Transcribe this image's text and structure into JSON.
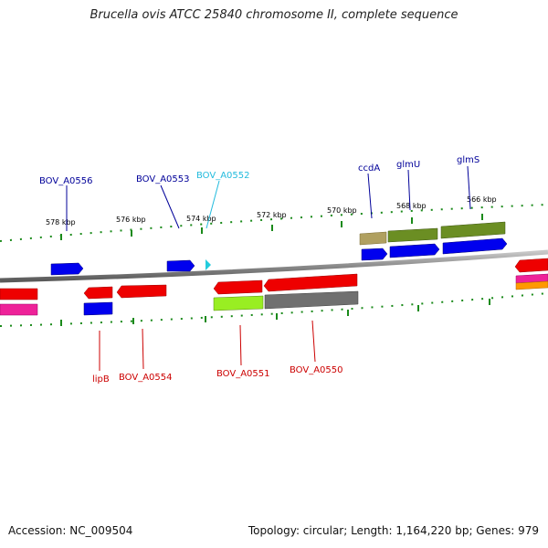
{
  "title": "Brucella ovis ATCC 25840 chromosome II, complete sequence",
  "footer": {
    "accession": "Accession: NC_009504",
    "summary": "Topology: circular; Length: 1,164,220 bp; Genes: 979"
  },
  "scale": {
    "ticks": [
      "578 kbp",
      "576 kbp",
      "574 kbp",
      "572 kbp",
      "570 kbp",
      "568 kbp",
      "566 kbp"
    ],
    "tick_color": "#1a8a1a"
  },
  "backbone_color": "#808080",
  "colors": {
    "blue": "#0000ee",
    "red": "#ee0000",
    "magenta": "#ee2299",
    "cyan": "#22ccdd",
    "khaki": "#b0a060",
    "olive": "#6b8e23",
    "lime": "#99ee22",
    "grey": "#707070",
    "orange": "#ff9900",
    "label_blue": "#000099",
    "label_cyan": "#22bbdd",
    "label_red": "#cc0000"
  },
  "genes_top": [
    "BOV_A0556",
    "BOV_A0553",
    "BOV_A0552",
    "ccdA",
    "glmU",
    "glmS"
  ],
  "genes_bottom": [
    "lipB",
    "BOV_A0554",
    "BOV_A0551",
    "BOV_A0550"
  ]
}
